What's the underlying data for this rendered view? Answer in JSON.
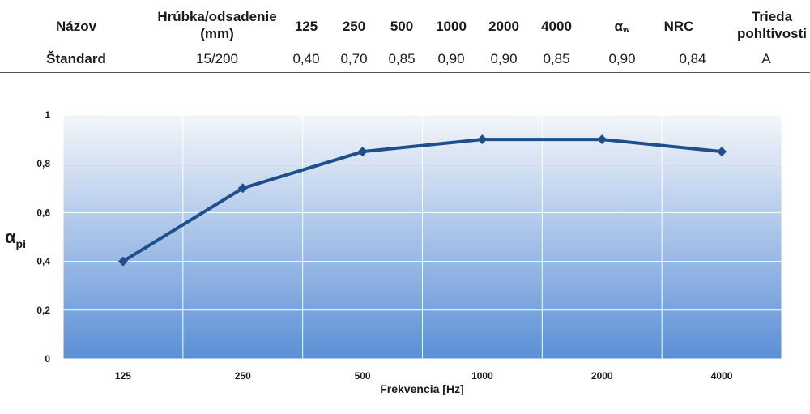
{
  "table": {
    "headers": {
      "name": "Názov",
      "thickness_line1": "Hrúbka/odsadenie",
      "thickness_line2": "(mm)",
      "f125": "125",
      "f250": "250",
      "f500": "500",
      "f1000": "1000",
      "f2000": "2000",
      "f4000": "4000",
      "alpha_symbol": "α",
      "alpha_sub": "w",
      "nrc": "NRC",
      "class_line1": "Trieda",
      "class_line2": "pohltivosti"
    },
    "row": {
      "name": "Štandard",
      "thickness": "15/200",
      "v125": "0,40",
      "v250": "0,70",
      "v500": "0,85",
      "v1000": "0,90",
      "v2000": "0,90",
      "v4000": "0,85",
      "alpha_w": "0,90",
      "nrc": "0,84",
      "class": "A"
    }
  },
  "chart_data": {
    "type": "line",
    "categories": [
      "125",
      "250",
      "500",
      "1000",
      "2000",
      "4000"
    ],
    "series": [
      {
        "values": [
          0.4,
          0.7,
          0.85,
          0.9,
          0.9,
          0.85
        ]
      }
    ],
    "xlabel": "Frekvencia [Hz]",
    "ylabel_symbol": "α",
    "ylabel_sub": "pi",
    "ylim": [
      0,
      1
    ],
    "yticks": [
      0,
      0.2,
      0.4,
      0.6,
      0.8,
      1
    ],
    "ytick_labels": [
      "0",
      "0,2",
      "0,4",
      "0,6",
      "0,8",
      "1"
    ],
    "grid": true,
    "colors": {
      "line": "#1f4e8c",
      "bg_top": "#f4f6fa",
      "bg_bottom": "#5b8fd6"
    }
  }
}
